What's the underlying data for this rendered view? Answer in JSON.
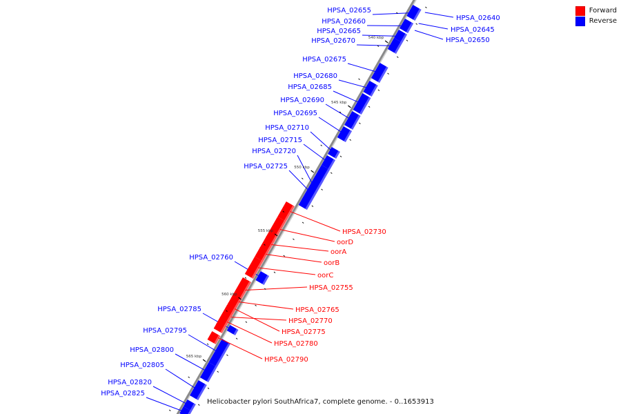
{
  "legend": {
    "forward_label": "Forward",
    "forward_color": "#ff0000",
    "reverse_label": "Reverse",
    "reverse_color": "#0000ff"
  },
  "caption": "Helicobacter pylori SouthAfrica7, complete genome. - 0..1653913",
  "backbone_color": "#8a8a8a",
  "ticks": [
    "540 kbp",
    "545 kbp",
    "550 kbp",
    "555 kbp",
    "560 kbp",
    "565 kbp"
  ],
  "genes_reverse": [
    "HPSA_02640",
    "HPSA_02645",
    "HPSA_02650",
    "HPSA_02655",
    "HPSA_02660",
    "HPSA_02665",
    "HPSA_02670",
    "HPSA_02675",
    "HPSA_02680",
    "HPSA_02685",
    "HPSA_02690",
    "HPSA_02695",
    "HPSA_02710",
    "HPSA_02715",
    "HPSA_02720",
    "HPSA_02725",
    "HPSA_02760",
    "HPSA_02785",
    "HPSA_02795",
    "HPSA_02800",
    "HPSA_02805",
    "HPSA_02820",
    "HPSA_02825"
  ],
  "genes_forward": [
    "HPSA_02730",
    "oorD",
    "oorA",
    "oorB",
    "oorC",
    "HPSA_02755",
    "HPSA_02765",
    "HPSA_02770",
    "HPSA_02775",
    "HPSA_02780",
    "HPSA_02790"
  ]
}
